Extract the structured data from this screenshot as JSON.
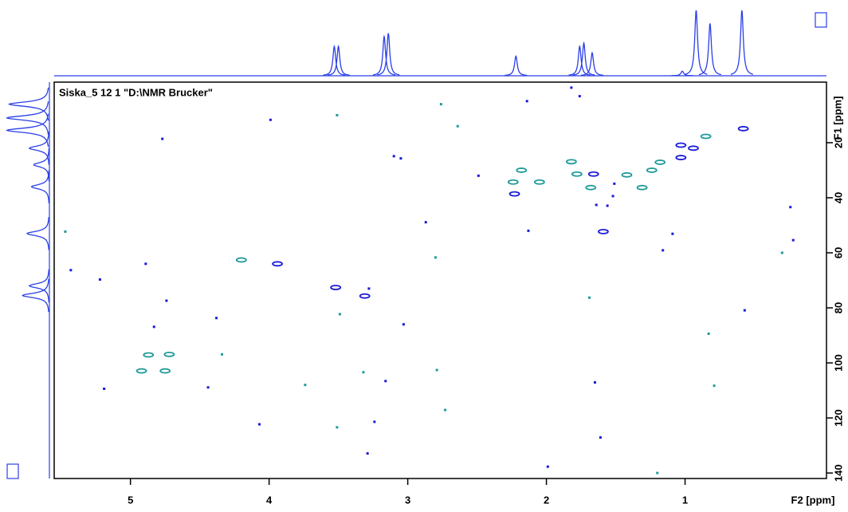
{
  "chart_data": {
    "type": "nmr2d",
    "title": "Siska_5 12 1 \"D:\\NMR Brucker\"",
    "x_label": "F2 [ppm]",
    "y_label": "F1 [ppm]",
    "xlim": [
      5.55,
      -0.02
    ],
    "ylim": [
      -2,
      142
    ],
    "xticks": [
      5,
      4,
      3,
      2,
      1
    ],
    "yticks": [
      20,
      40,
      60,
      80,
      100,
      120,
      140
    ],
    "axis_color": "#000000",
    "projection_color": "#2a3fe8",
    "series": [
      {
        "color": "#1a1ad8",
        "marker": "contour",
        "x": [
          0.58,
          0.94,
          1.03,
          1.03,
          1.66,
          2.23,
          1.59,
          3.94,
          3.52,
          3.31
        ],
        "y": [
          14.9,
          22,
          20.9,
          25.4,
          31.4,
          38.6,
          52.3,
          64,
          72.6,
          75.7
        ]
      },
      {
        "color": "#1f9a9a",
        "marker": "contour",
        "x": [
          0.85,
          1.82,
          1.18,
          2.18,
          1.78,
          1.42,
          1.24,
          2.24,
          2.05,
          1.68,
          1.31,
          4.2,
          4.72,
          4.87,
          4.92,
          4.75
        ],
        "y": [
          17.7,
          26.9,
          27.1,
          30,
          31.4,
          31.7,
          30,
          34.3,
          34.3,
          36.3,
          36.3,
          62.6,
          96.9,
          97.1,
          102.9,
          102.9
        ]
      },
      {
        "color": "#1a1ad8",
        "marker": "dot",
        "x": [
          3.99,
          2.14,
          1.82,
          1.76,
          3.1,
          3.05,
          4.77,
          2.49,
          1.51,
          1.52,
          1.64,
          1.56,
          0.24,
          2.13,
          2.87,
          1.09,
          0.22,
          1.16,
          4.89,
          5.43,
          5.22,
          3.28,
          4.74,
          4.38,
          4.83,
          3.03,
          0.57,
          3.16,
          4.44,
          5.19,
          1.65,
          4.07,
          3.24,
          1.61,
          3.29,
          1.99
        ],
        "y": [
          11.7,
          4.9,
          0,
          3.1,
          24.9,
          25.7,
          18.6,
          32,
          34.9,
          39.4,
          42.6,
          42.9,
          43.4,
          52,
          48.9,
          53.1,
          55.4,
          59.1,
          64,
          66.3,
          69.7,
          73,
          77.4,
          83.7,
          86.9,
          86,
          80.9,
          106.6,
          108.9,
          109.4,
          107.1,
          122.3,
          121.4,
          127.1,
          132.9,
          137.7
        ]
      },
      {
        "color": "#1f9a9a",
        "marker": "dot",
        "x": [
          2.76,
          2.64,
          3.51,
          5.47,
          0.3,
          2.8,
          1.69,
          3.49,
          0.83,
          4.34,
          2.79,
          3.32,
          3.74,
          0.79,
          2.73,
          3.51,
          1.2
        ],
        "y": [
          6,
          14,
          10,
          52.3,
          60,
          61.7,
          76.3,
          82.3,
          89.4,
          96.9,
          102.6,
          103.4,
          108,
          108.3,
          117.1,
          123.4,
          140
        ]
      }
    ],
    "f2_projection": {
      "positions": [
        3.53,
        3.5,
        3.17,
        3.14,
        2.22,
        1.76,
        1.73,
        1.67,
        1.02,
        0.92,
        0.82,
        0.59
      ],
      "heights": [
        0.45,
        0.45,
        0.6,
        0.65,
        0.3,
        0.45,
        0.5,
        0.35,
        0.07,
        1.0,
        0.8,
        1.0
      ]
    },
    "f1_projection": {
      "positions": [
        6,
        11,
        15.5,
        22,
        28,
        36,
        53,
        72,
        75.5
      ],
      "heights": [
        0.9,
        0.95,
        0.95,
        0.45,
        0.35,
        0.4,
        0.5,
        0.45,
        0.6
      ]
    }
  }
}
